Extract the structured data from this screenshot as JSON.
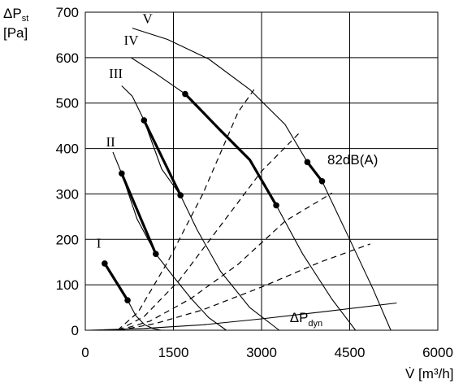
{
  "chart_data": {
    "type": "line",
    "title": "",
    "xlabel": "V̇ [m³/h]",
    "ylabel_main": "ΔP",
    "ylabel_sub": "st",
    "ylabel_unit": "[Pa]",
    "xlim": [
      0,
      6000
    ],
    "ylim": [
      0,
      700
    ],
    "x_ticks": [
      "0",
      "1500",
      "3000",
      "4500",
      "6000"
    ],
    "x_tick_values": [
      0,
      1500,
      3000,
      4500,
      6000
    ],
    "y_ticks": [
      "0",
      "100",
      "200",
      "300",
      "400",
      "500",
      "600",
      "700"
    ],
    "y_tick_values": [
      0,
      100,
      200,
      300,
      400,
      500,
      600,
      700
    ],
    "grid": true,
    "fan_curves": [
      {
        "name": "I",
        "label_at": [
          230,
          182
        ],
        "points": [
          [
            330,
            147
          ],
          [
            500,
            110
          ],
          [
            720,
            66
          ],
          [
            860,
            32
          ],
          [
            1010,
            12
          ],
          [
            1150,
            4
          ],
          [
            1290,
            0
          ]
        ]
      },
      {
        "name": "II",
        "label_at": [
          430,
          405
        ],
        "points": [
          [
            470,
            392
          ],
          [
            620,
            345
          ],
          [
            880,
            245
          ],
          [
            1200,
            168
          ],
          [
            1500,
            118
          ],
          [
            1800,
            70
          ],
          [
            2100,
            28
          ],
          [
            2400,
            0
          ]
        ]
      },
      {
        "name": "III",
        "label_at": [
          520,
          555
        ],
        "points": [
          [
            620,
            538
          ],
          [
            800,
            515
          ],
          [
            1000,
            462
          ],
          [
            1300,
            355
          ],
          [
            1620,
            297
          ],
          [
            1900,
            222
          ],
          [
            2300,
            130
          ],
          [
            2800,
            50
          ],
          [
            3300,
            0
          ]
        ]
      },
      {
        "name": "IV",
        "label_at": [
          780,
          628
        ],
        "points": [
          [
            780,
            600
          ],
          [
            1200,
            565
          ],
          [
            1700,
            520
          ],
          [
            2300,
            440
          ],
          [
            2800,
            375
          ],
          [
            3250,
            275
          ],
          [
            3700,
            168
          ],
          [
            4200,
            68
          ],
          [
            4600,
            0
          ]
        ]
      },
      {
        "name": "V",
        "label_at": [
          1060,
          676
        ],
        "points": [
          [
            800,
            665
          ],
          [
            1400,
            640
          ],
          [
            2100,
            597
          ],
          [
            2800,
            530
          ],
          [
            3400,
            453
          ],
          [
            3780,
            370
          ],
          [
            4030,
            328
          ],
          [
            4500,
            200
          ],
          [
            4900,
            90
          ],
          [
            5200,
            0
          ]
        ]
      }
    ],
    "operating_segments": [
      {
        "curve": "I",
        "points": [
          [
            330,
            147
          ],
          [
            720,
            66
          ]
        ]
      },
      {
        "curve": "II",
        "points": [
          [
            620,
            345
          ],
          [
            1200,
            168
          ]
        ]
      },
      {
        "curve": "III",
        "points": [
          [
            1000,
            462
          ],
          [
            1620,
            297
          ]
        ]
      },
      {
        "curve": "IV",
        "points": [
          [
            1700,
            520
          ],
          [
            2300,
            440
          ],
          [
            2800,
            375
          ],
          [
            3250,
            275
          ]
        ]
      },
      {
        "curve": "V",
        "points": [
          [
            3780,
            370
          ],
          [
            4030,
            328
          ]
        ]
      }
    ],
    "system_curves": [
      {
        "points": [
          [
            550,
            0
          ],
          [
            900,
            40
          ],
          [
            1400,
            150
          ],
          [
            2000,
            300
          ],
          [
            2600,
            480
          ],
          [
            2900,
            535
          ]
        ]
      },
      {
        "points": [
          [
            560,
            0
          ],
          [
            1000,
            30
          ],
          [
            1600,
            110
          ],
          [
            2300,
            230
          ],
          [
            3000,
            350
          ],
          [
            3650,
            435
          ]
        ]
      },
      {
        "points": [
          [
            570,
            0
          ],
          [
            1100,
            20
          ],
          [
            1800,
            70
          ],
          [
            2600,
            145
          ],
          [
            3400,
            240
          ],
          [
            4200,
            302
          ]
        ]
      },
      {
        "points": [
          [
            580,
            0
          ],
          [
            1200,
            15
          ],
          [
            2000,
            45
          ],
          [
            3000,
            95
          ],
          [
            4000,
            150
          ],
          [
            4850,
            190
          ]
        ]
      }
    ],
    "dynamic_pressure_curve": {
      "label_main": "ΔP",
      "label_sub": "dyn",
      "points": [
        [
          50,
          0
        ],
        [
          1000,
          4
        ],
        [
          2000,
          12
        ],
        [
          3000,
          25
        ],
        [
          4000,
          40
        ],
        [
          5300,
          60
        ]
      ]
    },
    "annotations": [
      {
        "text": "82dB(A)",
        "x": 4120,
        "y": 365
      }
    ]
  }
}
